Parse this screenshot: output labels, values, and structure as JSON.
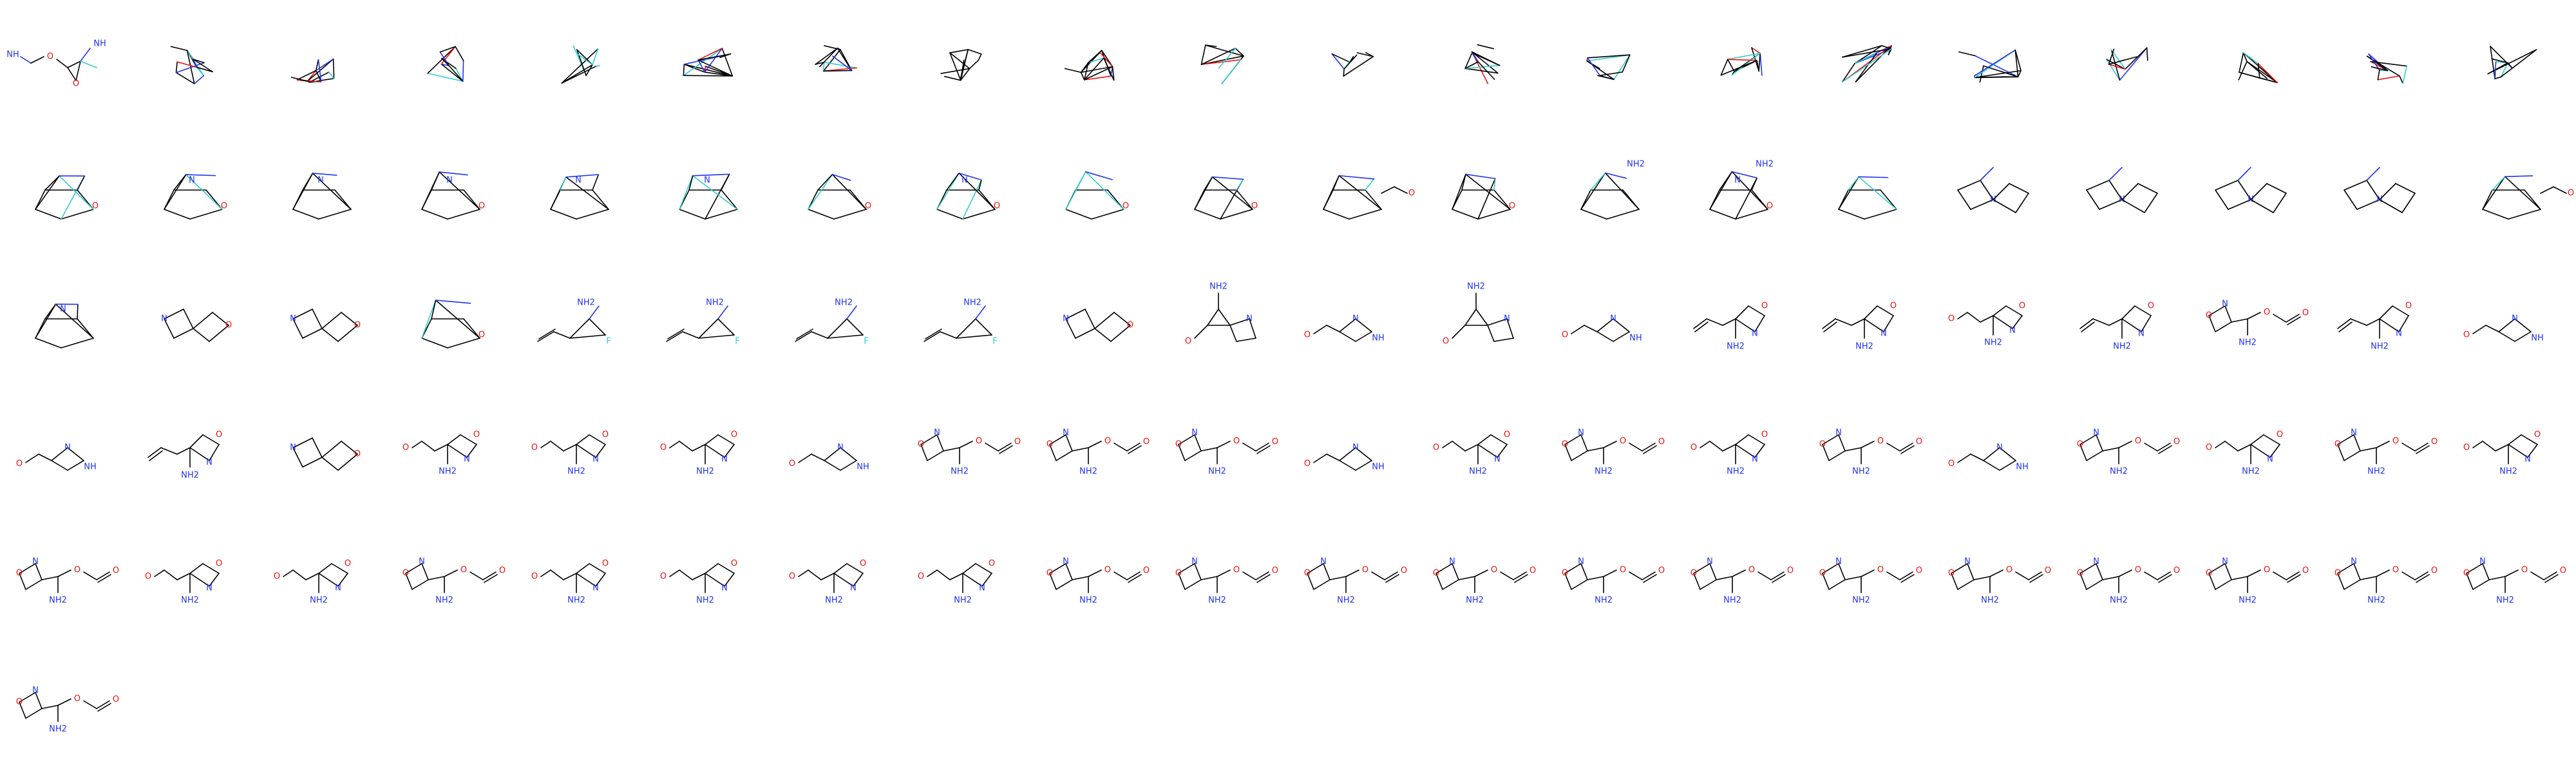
{
  "palette": {
    "carbon": "#000000",
    "nitrogen": "#2233ee",
    "oxygen": "#ee1111",
    "fluorine": "#33cccc",
    "background": "#ffffff"
  },
  "grid": {
    "columns": 20,
    "molecule_count": 101
  },
  "labels": {
    "amine": "NH2",
    "imine": "NH",
    "nitrogen": "N",
    "oxygen": "O",
    "fluorine": "F"
  },
  "molecules": [
    {
      "kind": "chain_open"
    },
    {
      "kind": "tangle"
    },
    {
      "kind": "tangle"
    },
    {
      "kind": "tangle"
    },
    {
      "kind": "tangle"
    },
    {
      "kind": "tangle"
    },
    {
      "kind": "tangle"
    },
    {
      "kind": "tangle"
    },
    {
      "kind": "tangle"
    },
    {
      "kind": "tangle"
    },
    {
      "kind": "tangle"
    },
    {
      "kind": "tangle"
    },
    {
      "kind": "tangle"
    },
    {
      "kind": "tangle"
    },
    {
      "kind": "tangle"
    },
    {
      "kind": "tangle"
    },
    {
      "kind": "tangle"
    },
    {
      "kind": "tangle"
    },
    {
      "kind": "tangle"
    },
    {
      "kind": "tangle"
    },
    {
      "kind": "cage"
    },
    {
      "kind": "cage"
    },
    {
      "kind": "cage"
    },
    {
      "kind": "cage"
    },
    {
      "kind": "cage"
    },
    {
      "kind": "cage"
    },
    {
      "kind": "cage"
    },
    {
      "kind": "cage"
    },
    {
      "kind": "cage"
    },
    {
      "kind": "cage"
    },
    {
      "kind": "cage_chain"
    },
    {
      "kind": "cage"
    },
    {
      "kind": "cage_amine"
    },
    {
      "kind": "cage_amine"
    },
    {
      "kind": "cage"
    },
    {
      "kind": "bicyclic"
    },
    {
      "kind": "bicyclic"
    },
    {
      "kind": "bicyclic"
    },
    {
      "kind": "bicyclic"
    },
    {
      "kind": "cage_chain"
    },
    {
      "kind": "cage"
    },
    {
      "kind": "spiro"
    },
    {
      "kind": "spiro"
    },
    {
      "kind": "cage"
    },
    {
      "kind": "allyl_cage"
    },
    {
      "kind": "allyl_cage"
    },
    {
      "kind": "allyl_cage"
    },
    {
      "kind": "allyl_cage"
    },
    {
      "kind": "spiro"
    },
    {
      "kind": "cyclopropyl"
    },
    {
      "kind": "aziridine"
    },
    {
      "kind": "cyclopropyl"
    },
    {
      "kind": "aziridine"
    },
    {
      "kind": "allyl_ring"
    },
    {
      "kind": "allyl_ring"
    },
    {
      "kind": "amino_ring"
    },
    {
      "kind": "allyl_ring"
    },
    {
      "kind": "oxy_ring"
    },
    {
      "kind": "allyl_ring"
    },
    {
      "kind": "aziridine"
    },
    {
      "kind": "aziridine"
    },
    {
      "kind": "allyl_ring"
    },
    {
      "kind": "spiro"
    },
    {
      "kind": "amino_ring"
    },
    {
      "kind": "amino_ring"
    },
    {
      "kind": "amino_ring"
    },
    {
      "kind": "aziridine"
    },
    {
      "kind": "oxy_ring"
    },
    {
      "kind": "oxy_ring"
    },
    {
      "kind": "oxy_ring"
    },
    {
      "kind": "aziridine"
    },
    {
      "kind": "amino_ring"
    },
    {
      "kind": "oxy_ring"
    },
    {
      "kind": "amino_ring"
    },
    {
      "kind": "oxy_ring"
    },
    {
      "kind": "aziridine"
    },
    {
      "kind": "oxy_ring"
    },
    {
      "kind": "amino_ring"
    },
    {
      "kind": "oxy_ring"
    },
    {
      "kind": "amino_ring"
    },
    {
      "kind": "oxy_ring"
    },
    {
      "kind": "amino_ring"
    },
    {
      "kind": "amino_ring"
    },
    {
      "kind": "oxy_ring"
    },
    {
      "kind": "amino_ring"
    },
    {
      "kind": "amino_ring"
    },
    {
      "kind": "amino_ring"
    },
    {
      "kind": "amino_ring"
    },
    {
      "kind": "oxy_ring"
    },
    {
      "kind": "oxy_ring"
    },
    {
      "kind": "oxy_ring"
    },
    {
      "kind": "oxy_ring"
    },
    {
      "kind": "oxy_ring"
    },
    {
      "kind": "oxy_ring"
    },
    {
      "kind": "oxy_ring"
    },
    {
      "kind": "oxy_ring"
    },
    {
      "kind": "oxy_ring"
    },
    {
      "kind": "oxy_ring"
    },
    {
      "kind": "oxy_ring"
    },
    {
      "kind": "oxy_ring"
    },
    {
      "kind": "oxy_ring"
    }
  ]
}
